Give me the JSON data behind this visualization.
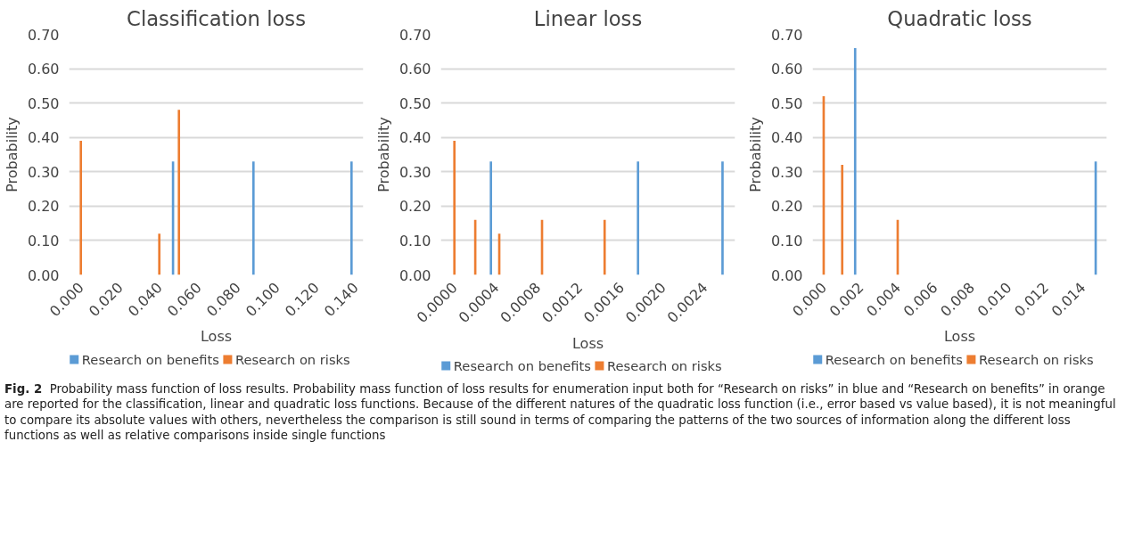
{
  "chart_data": [
    {
      "type": "bar",
      "title": "Classification loss",
      "xlabel": "Loss",
      "ylabel": "Probability",
      "xlim": [
        -0.006,
        0.144
      ],
      "xticks": [
        {
          "value": 0,
          "label": "0.000"
        },
        {
          "value": 0.02,
          "label": "0.020"
        },
        {
          "value": 0.04,
          "label": "0.040"
        },
        {
          "value": 0.06,
          "label": "0.060"
        },
        {
          "value": 0.08,
          "label": "0.080"
        },
        {
          "value": 0.1,
          "label": "0.100"
        },
        {
          "value": 0.12,
          "label": "0.120"
        },
        {
          "value": 0.14,
          "label": "0.140"
        }
      ],
      "ylim": [
        0,
        0.7
      ],
      "yticks": [
        {
          "value": 0,
          "label": "0.00"
        },
        {
          "value": 0.1,
          "label": "0.10"
        },
        {
          "value": 0.2,
          "label": "0.20"
        },
        {
          "value": 0.3,
          "label": "0.30"
        },
        {
          "value": 0.4,
          "label": "0.40"
        },
        {
          "value": 0.5,
          "label": "0.50"
        },
        {
          "value": 0.6,
          "label": "0.60"
        },
        {
          "value": 0.7,
          "label": "0.70"
        }
      ],
      "grid": "y",
      "legend": "bottom",
      "series": [
        {
          "name": "Research on benefits",
          "color": "#5b9bd5",
          "x": [
            0.047,
            0.088,
            0.138
          ],
          "values": [
            0.33,
            0.33,
            0.33
          ]
        },
        {
          "name": "Research on risks",
          "color": "#ed7d31",
          "x": [
            0.0,
            0.04,
            0.05
          ],
          "values": [
            0.39,
            0.12,
            0.48
          ]
        }
      ],
      "annotations": [
        "Fig. 2",
        "Probability mass function of loss results. Probability mass function of loss results for enumeration input both for “Research on risks” in blue and “Research on benefits” in orange are reported for the classification, linear and quadratic loss functions. Because of the different natures of the quadratic loss function (i.e., error based vs value based), it is not meaningful to compare its absolute values with others, nevertheless the comparison is still sound in terms of comparing the patterns of the two sources of information along the different loss functions as well as relative comparisons inside single functions"
      ]
    },
    {
      "type": "bar",
      "title": "Linear loss",
      "xlabel": "Loss",
      "ylabel": "Probability",
      "xlim": [
        -0.00013,
        0.00269
      ],
      "xticks": [
        {
          "value": 0,
          "label": "0.0000"
        },
        {
          "value": 0.0004,
          "label": "0.0004"
        },
        {
          "value": 0.0008,
          "label": "0.0008"
        },
        {
          "value": 0.0012,
          "label": "0.0012"
        },
        {
          "value": 0.0016,
          "label": "0.0016"
        },
        {
          "value": 0.002,
          "label": "0.0020"
        },
        {
          "value": 0.0024,
          "label": "0.0024"
        }
      ],
      "ylim": [
        0,
        0.7
      ],
      "yticks": [
        {
          "value": 0,
          "label": "0.00"
        },
        {
          "value": 0.1,
          "label": "0.10"
        },
        {
          "value": 0.2,
          "label": "0.20"
        },
        {
          "value": 0.3,
          "label": "0.30"
        },
        {
          "value": 0.4,
          "label": "0.40"
        },
        {
          "value": 0.5,
          "label": "0.50"
        },
        {
          "value": 0.6,
          "label": "0.60"
        },
        {
          "value": 0.7,
          "label": "0.70"
        }
      ],
      "grid": "y",
      "legend": "bottom",
      "series": [
        {
          "name": "Research on benefits",
          "color": "#5b9bd5",
          "x": [
            0.00035,
            0.00176,
            0.00257
          ],
          "values": [
            0.33,
            0.33,
            0.33
          ]
        },
        {
          "name": "Research on risks",
          "color": "#ed7d31",
          "x": [
            0.0,
            0.0002,
            0.00043,
            0.00084,
            0.00144
          ],
          "values": [
            0.39,
            0.16,
            0.12,
            0.16,
            0.16
          ]
        }
      ]
    },
    {
      "type": "bar",
      "title": "Quadratic loss",
      "xlabel": "Loss",
      "ylabel": "Probability",
      "xlim": [
        -0.0006,
        0.0153
      ],
      "xticks": [
        {
          "value": 0,
          "label": "0.000"
        },
        {
          "value": 0.002,
          "label": "0.002"
        },
        {
          "value": 0.004,
          "label": "0.004"
        },
        {
          "value": 0.006,
          "label": "0.006"
        },
        {
          "value": 0.008,
          "label": "0.008"
        },
        {
          "value": 0.01,
          "label": "0.010"
        },
        {
          "value": 0.012,
          "label": "0.012"
        },
        {
          "value": 0.014,
          "label": "0.014"
        }
      ],
      "ylim": [
        0,
        0.7
      ],
      "yticks": [
        {
          "value": 0,
          "label": "0.00"
        },
        {
          "value": 0.1,
          "label": "0.10"
        },
        {
          "value": 0.2,
          "label": "0.20"
        },
        {
          "value": 0.3,
          "label": "0.30"
        },
        {
          "value": 0.4,
          "label": "0.40"
        },
        {
          "value": 0.5,
          "label": "0.50"
        },
        {
          "value": 0.6,
          "label": "0.60"
        },
        {
          "value": 0.7,
          "label": "0.70"
        }
      ],
      "grid": "y",
      "legend": "bottom",
      "series": [
        {
          "name": "Research on benefits",
          "color": "#5b9bd5",
          "x": [
            0.0017,
            0.0147
          ],
          "values": [
            0.66,
            0.33
          ]
        },
        {
          "name": "Research on risks",
          "color": "#ed7d31",
          "x": [
            0.0,
            0.001,
            0.004
          ],
          "values": [
            0.52,
            0.32,
            0.16
          ]
        }
      ]
    }
  ]
}
